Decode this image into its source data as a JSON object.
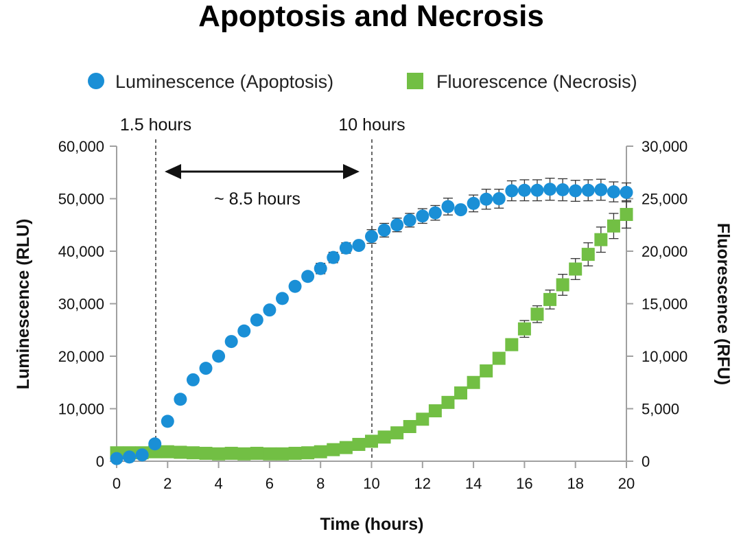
{
  "chart_data": {
    "type": "scatter",
    "title": "Apoptosis and Necrosis",
    "xlabel": "Time (hours)",
    "ylabel": "Luminescence (RLU)",
    "y2label": "Fluorescence (RFU)",
    "xlim": [
      0,
      20
    ],
    "ylim": [
      0,
      60000
    ],
    "y2lim": [
      0,
      30000
    ],
    "x_ticks": [
      "0",
      "2",
      "4",
      "6",
      "8",
      "10",
      "12",
      "14",
      "16",
      "18",
      "20"
    ],
    "y_ticks": [
      "0",
      "10,000",
      "20,000",
      "30,000",
      "40,000",
      "50,000",
      "60,000"
    ],
    "y2_ticks": [
      "0",
      "5,000",
      "10,000",
      "15,000",
      "20,000",
      "25,000",
      "30,000"
    ],
    "legend_placement": "top-center",
    "grid": false,
    "series": [
      {
        "name": "Luminescence (Apoptosis)",
        "axis": "left",
        "marker": "circle",
        "color": "#1a8fd6",
        "x": [
          0,
          0.5,
          1,
          1.5,
          2,
          2.5,
          3,
          3.5,
          4,
          4.5,
          5,
          5.5,
          6,
          6.5,
          7,
          7.5,
          8,
          8.5,
          9,
          9.5,
          10,
          10.5,
          11,
          11.5,
          12,
          12.5,
          13,
          13.5,
          14,
          14.5,
          15,
          15.5,
          16,
          16.5,
          17,
          17.5,
          18,
          18.5,
          19,
          19.5,
          20
        ],
        "y": [
          500,
          800,
          1200,
          3300,
          7600,
          11800,
          15500,
          17700,
          20000,
          22800,
          24800,
          26900,
          28800,
          31000,
          33300,
          35200,
          36700,
          38800,
          40600,
          41100,
          42800,
          44000,
          45000,
          45900,
          46700,
          47300,
          48500,
          47900,
          49100,
          49900,
          50000,
          51500,
          51600,
          51600,
          51800,
          51700,
          51500,
          51600,
          51700,
          51300,
          51200
        ],
        "error": [
          0,
          0,
          0,
          0,
          0,
          0,
          0,
          0,
          0,
          0,
          0,
          0,
          0,
          0,
          0,
          0,
          1000,
          1000,
          1000,
          0,
          1300,
          1300,
          1300,
          1300,
          1400,
          1400,
          1600,
          0,
          1600,
          1900,
          1800,
          1900,
          2000,
          2000,
          2100,
          2100,
          2000,
          2000,
          2000,
          1900,
          1800
        ]
      },
      {
        "name": "Fluorescence (Necrosis)",
        "axis": "right",
        "marker": "square",
        "color": "#72bf44",
        "x": [
          0,
          0.5,
          1,
          1.5,
          2,
          2.5,
          3,
          3.5,
          4,
          4.5,
          5,
          5.5,
          6,
          6.5,
          7,
          7.5,
          8,
          8.5,
          9,
          9.5,
          10,
          10.5,
          11,
          11.5,
          12,
          12.5,
          13,
          13.5,
          14,
          14.5,
          15,
          15.5,
          16,
          16.5,
          17,
          17.5,
          18,
          18.5,
          19,
          19.5,
          20
        ],
        "y": [
          800,
          800,
          800,
          900,
          900,
          850,
          800,
          750,
          700,
          750,
          700,
          750,
          700,
          700,
          750,
          800,
          900,
          1100,
          1300,
          1600,
          1900,
          2300,
          2700,
          3300,
          4000,
          4800,
          5600,
          6500,
          7500,
          8600,
          9800,
          11100,
          12600,
          14000,
          15400,
          16800,
          18300,
          19700,
          21100,
          22400,
          23500
        ],
        "error": [
          0,
          0,
          0,
          0,
          0,
          0,
          0,
          0,
          0,
          0,
          0,
          0,
          0,
          0,
          0,
          0,
          0,
          0,
          0,
          0,
          0,
          0,
          0,
          0,
          0,
          0,
          0,
          0,
          0,
          0,
          0,
          0,
          800,
          800,
          900,
          1000,
          1000,
          1100,
          1200,
          1200,
          1300
        ]
      }
    ],
    "annotations": {
      "lines": [
        {
          "x": 1.5,
          "label": "1.5 hours"
        },
        {
          "x": 10,
          "label": "10 hours"
        }
      ],
      "span_label": "~ 8.5 hours"
    }
  }
}
